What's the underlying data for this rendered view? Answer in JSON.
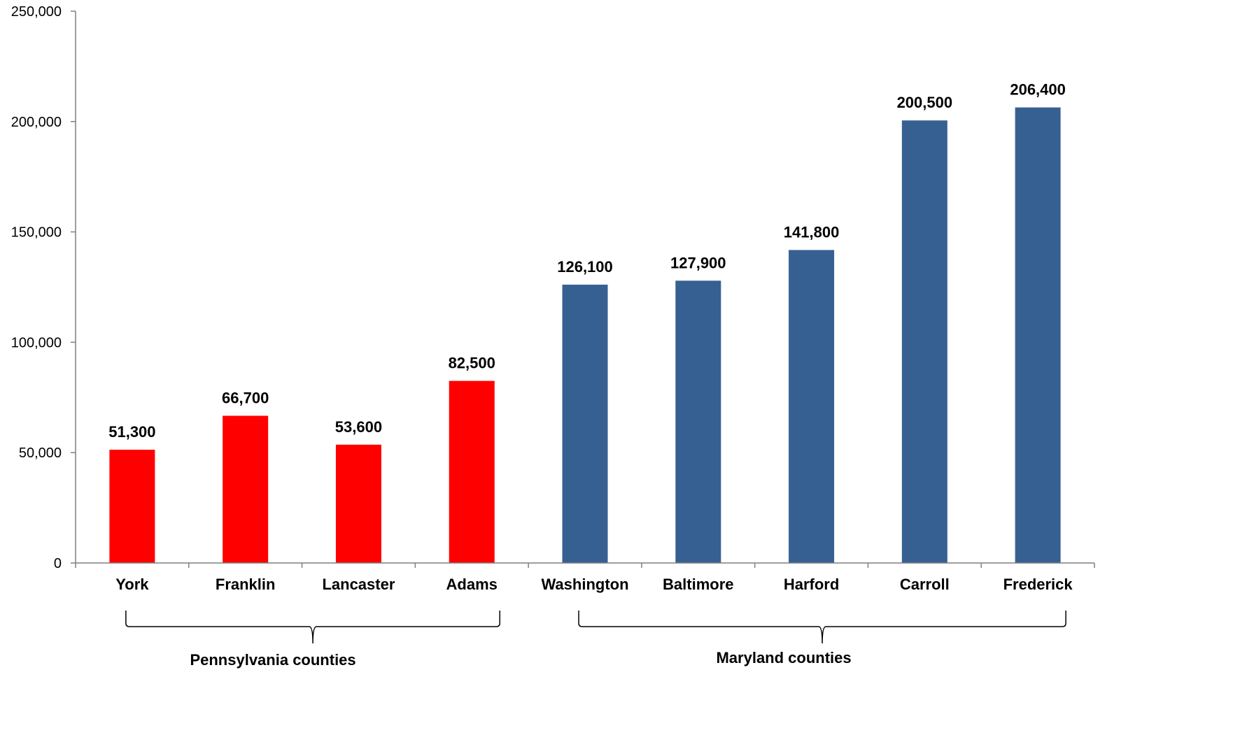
{
  "chart_data": {
    "type": "bar",
    "categories": [
      "York",
      "Franklin",
      "Lancaster",
      "Adams",
      "Washington",
      "Baltimore",
      "Harford",
      "Carroll",
      "Frederick"
    ],
    "values": [
      51300,
      66700,
      53600,
      82500,
      126100,
      127900,
      141800,
      200500,
      206400
    ],
    "data_labels": [
      "51,300",
      "66,700",
      "53,600",
      "82,500",
      "126,100",
      "127,900",
      "141,800",
      "200,500",
      "206,400"
    ],
    "bar_colors": [
      "#ff0000",
      "#ff0000",
      "#ff0000",
      "#ff0000",
      "#376092",
      "#376092",
      "#376092",
      "#376092",
      "#376092"
    ],
    "ylim": [
      0,
      250000
    ],
    "yticks": [
      0,
      50000,
      100000,
      150000,
      200000,
      250000
    ],
    "ytick_labels": [
      "0",
      "50,000",
      "100,000",
      "150,000",
      "200,000",
      "250,000"
    ],
    "title": "",
    "xlabel": "",
    "ylabel": "",
    "grid": false,
    "groups": [
      {
        "label": "Pennsylvania counties",
        "start_index": 0,
        "end_index": 3
      },
      {
        "label": "Maryland counties",
        "start_index": 4,
        "end_index": 8
      }
    ]
  }
}
